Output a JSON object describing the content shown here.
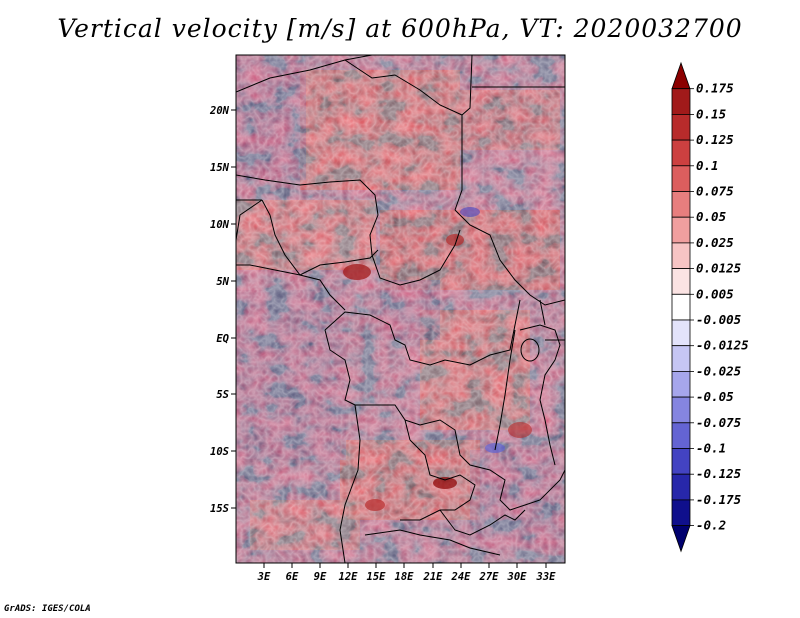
{
  "title": "Vertical velocity [m/s] at 600hPa, VT: 2020032700",
  "credit": "GrADS: IGES/COLA",
  "map": {
    "lat_labels": [
      "20N",
      "15N",
      "10N",
      "5N",
      "EQ",
      "5S",
      "10S",
      "15S"
    ],
    "lon_labels": [
      "3E",
      "6E",
      "9E",
      "12E",
      "15E",
      "18E",
      "21E",
      "24E",
      "27E",
      "30E",
      "33E"
    ]
  },
  "colorbar": {
    "labels": [
      "0.175",
      "0.15",
      "0.125",
      "0.1",
      "0.075",
      "0.05",
      "0.025",
      "0.0125",
      "0.005",
      "-0.005",
      "-0.0125",
      "-0.025",
      "-0.05",
      "-0.075",
      "-0.1",
      "-0.125",
      "-0.175",
      "-0.2"
    ],
    "colors": [
      "#8b0000",
      "#a11a1a",
      "#b82b2b",
      "#cc4040",
      "#dc5e5e",
      "#e77e7e",
      "#f09f9f",
      "#f7c4c4",
      "#fbe3e3",
      "#ffffff",
      "#e3e3fb",
      "#c6c6f4",
      "#a6a6ec",
      "#8585e0",
      "#6464d3",
      "#4343c2",
      "#2727aa",
      "#0f0f8c",
      "#00006e"
    ]
  }
}
